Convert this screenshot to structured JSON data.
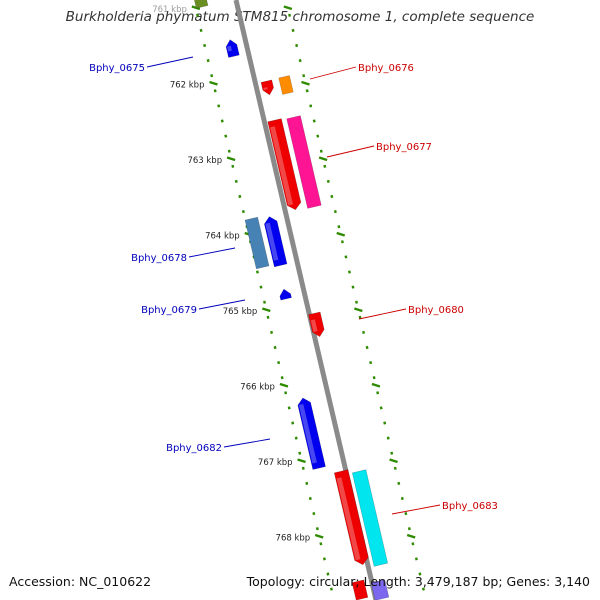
{
  "title": "Burkholderia phymatum STM815 chromosome 1, complete sequence",
  "footer": {
    "accession": "Accession: NC_010622",
    "summary": "Topology: circular; Length: 3,479,187 bp; Genes: 3,140"
  },
  "colors": {
    "backbone": "#8a8a8a",
    "tick": "#2e8b00",
    "minus_strand_label": "#0000bb",
    "plus_strand_label": "#cc0000"
  },
  "ticks": [
    {
      "label": "761 kbp",
      "kbp": 761
    },
    {
      "label": "762 kbp",
      "kbp": 762
    },
    {
      "label": "763 kbp",
      "kbp": 763
    },
    {
      "label": "764 kbp",
      "kbp": 764
    },
    {
      "label": "765 kbp",
      "kbp": 765
    },
    {
      "label": "766 kbp",
      "kbp": 766
    },
    {
      "label": "767 kbp",
      "kbp": 767
    },
    {
      "label": "768 kbp",
      "kbp": 768
    }
  ],
  "genes": [
    {
      "label": "Bphy_0675",
      "strand": "-",
      "color": "#0000ee"
    },
    {
      "label": "Bphy_0676",
      "strand": "+",
      "color": "#ee0000"
    },
    {
      "label": "Bphy_0677",
      "strand": "+",
      "color": "#ee0000"
    },
    {
      "label": "Bphy_0678",
      "strand": "-",
      "color": "#0000ee"
    },
    {
      "label": "Bphy_0679",
      "strand": "-",
      "color": "#0000ee"
    },
    {
      "label": "Bphy_0680",
      "strand": "+",
      "color": "#ee0000"
    },
    {
      "label": "Bphy_0682",
      "strand": "-",
      "color": "#0000ee"
    },
    {
      "label": "Bphy_0683",
      "strand": "+",
      "color": "#ee0000"
    }
  ]
}
